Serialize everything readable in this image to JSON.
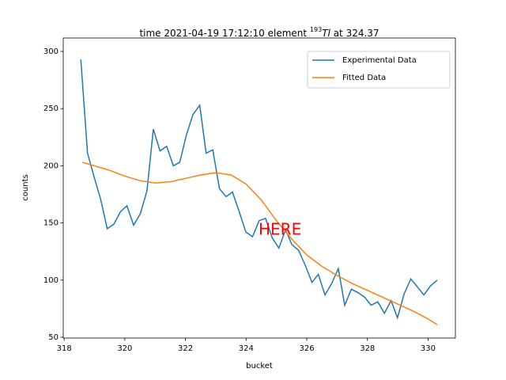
{
  "chart_data": {
    "type": "line",
    "title_prefix": "time 2021-04-19 17:12:10 element ",
    "isotope_mass": "193",
    "element": "Tl",
    "title_suffix": " at 324.37",
    "annotation": "HERE",
    "xlabel": "bucket",
    "ylabel": "counts",
    "xlim": [
      317.97,
      330.9
    ],
    "ylim": [
      49.3,
      311.8
    ],
    "xticks": [
      318,
      320,
      322,
      324,
      326,
      328,
      330
    ],
    "yticks": [
      50,
      100,
      150,
      200,
      250,
      300
    ],
    "legend": "upper right",
    "series": [
      {
        "name": "Experimental Data",
        "color": "#1f77b4",
        "x": [
          318.55,
          318.77,
          318.99,
          319.2,
          319.42,
          319.64,
          319.86,
          320.07,
          320.29,
          320.51,
          320.73,
          320.94,
          321.16,
          321.38,
          321.6,
          321.81,
          322.03,
          322.25,
          322.47,
          322.68,
          322.9,
          323.12,
          323.34,
          323.55,
          323.77,
          323.99,
          324.21,
          324.43,
          324.64,
          324.86,
          325.08,
          325.3,
          325.51,
          325.73,
          325.95,
          326.17,
          326.38,
          326.6,
          326.82,
          327.04,
          327.25,
          327.47,
          327.69,
          327.91,
          328.12,
          328.34,
          328.56,
          328.78,
          328.99,
          329.21,
          329.43,
          329.65,
          329.86,
          330.08,
          330.3
        ],
        "values": [
          293,
          211,
          190,
          171,
          145,
          149,
          160,
          165,
          148,
          158,
          178,
          232,
          213,
          217,
          200,
          203,
          227,
          245,
          253,
          211,
          214,
          180,
          173,
          177,
          160,
          142,
          138,
          152,
          154,
          137,
          128,
          144,
          131,
          126,
          113,
          98,
          105,
          87,
          97,
          110,
          78,
          92,
          89,
          85,
          78,
          81,
          71,
          82,
          67,
          88,
          101,
          94,
          87,
          95,
          100
        ]
      },
      {
        "name": "Fitted Data",
        "color": "#ff7f0e",
        "x": [
          318.6,
          319,
          319.5,
          320,
          320.5,
          321,
          321.5,
          322,
          322.5,
          323,
          323.5,
          324,
          324.5,
          325,
          325.5,
          326,
          326.5,
          327,
          327.5,
          328,
          328.5,
          329,
          329.5,
          330,
          330.3
        ],
        "values": [
          203,
          200,
          196,
          191,
          187,
          185,
          186,
          189,
          192,
          194,
          192,
          184,
          170,
          152,
          136,
          122,
          112,
          104,
          97,
          91,
          85,
          79,
          73,
          66,
          61
        ]
      }
    ]
  }
}
